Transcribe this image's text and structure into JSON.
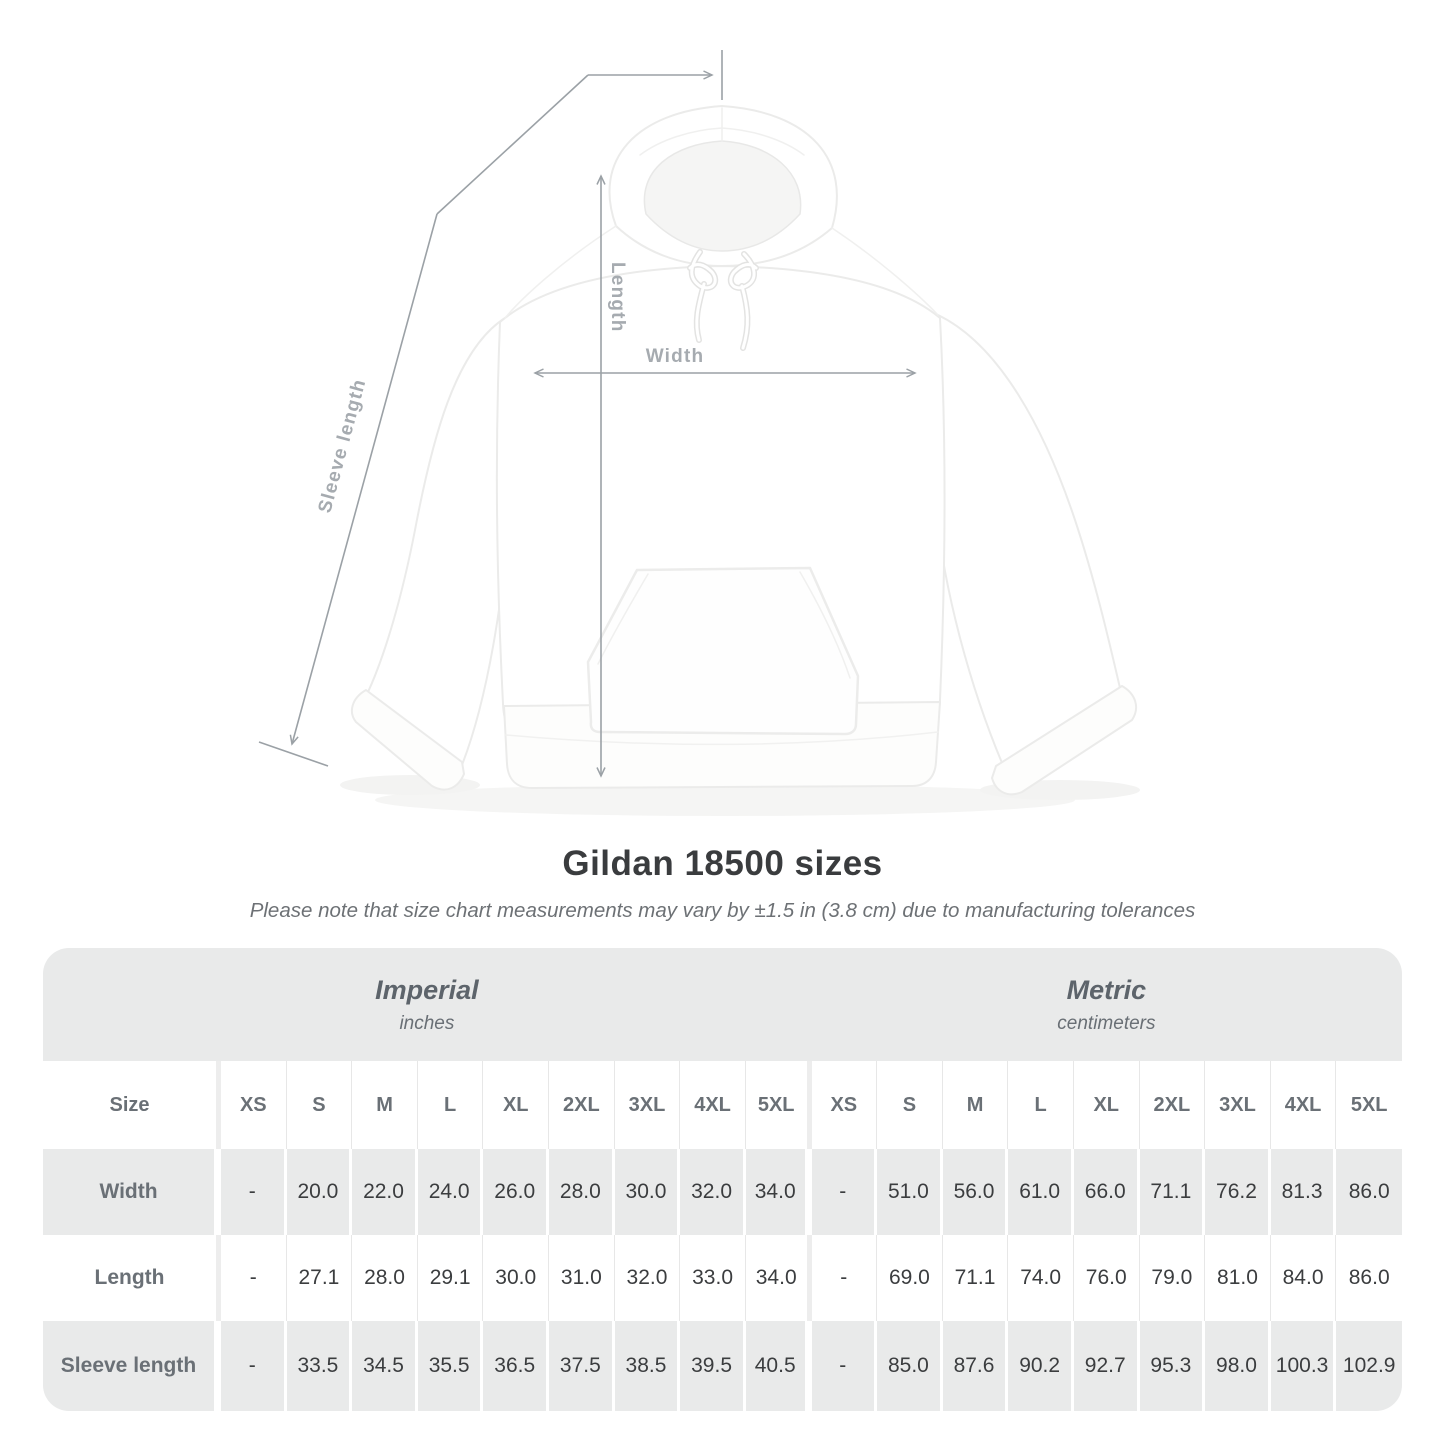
{
  "title": "Gildan 18500 sizes",
  "subtitle": "Please note that size chart measurements may vary by ±1.5 in (3.8 cm) due to manufacturing tolerances",
  "diagram": {
    "labels": {
      "length": "Length",
      "width": "Width",
      "sleeve_length": "Sleeve length"
    },
    "line_color": "#9ba1a6",
    "label_color": "#a6abb0"
  },
  "table": {
    "size_col_header": "Size",
    "unit_groups": [
      {
        "name": "Imperial",
        "unit": "inches"
      },
      {
        "name": "Metric",
        "unit": "centimeters"
      }
    ],
    "sizes": [
      "XS",
      "S",
      "M",
      "L",
      "XL",
      "2XL",
      "3XL",
      "4XL",
      "5XL"
    ],
    "rows": [
      {
        "label": "Width",
        "imperial": [
          "-",
          "20.0",
          "22.0",
          "24.0",
          "26.0",
          "28.0",
          "30.0",
          "32.0",
          "34.0"
        ],
        "metric": [
          "-",
          "51.0",
          "56.0",
          "61.0",
          "66.0",
          "71.1",
          "76.2",
          "81.3",
          "86.0"
        ]
      },
      {
        "label": "Length",
        "imperial": [
          "-",
          "27.1",
          "28.0",
          "29.1",
          "30.0",
          "31.0",
          "32.0",
          "33.0",
          "34.0"
        ],
        "metric": [
          "-",
          "69.0",
          "71.1",
          "74.0",
          "76.0",
          "79.0",
          "81.0",
          "84.0",
          "86.0"
        ]
      },
      {
        "label": "Sleeve length",
        "imperial": [
          "-",
          "33.5",
          "34.5",
          "35.5",
          "36.5",
          "37.5",
          "38.5",
          "39.5",
          "40.5"
        ],
        "metric": [
          "-",
          "85.0",
          "87.6",
          "90.2",
          "92.7",
          "95.3",
          "98.0",
          "100.3",
          "102.9"
        ]
      }
    ]
  },
  "chart_data": {
    "type": "table",
    "title": "Gildan 18500 sizes",
    "note": "Please note that size chart measurements may vary by ±1.5 in (3.8 cm) due to manufacturing tolerances",
    "column_groups": [
      "Imperial (inches)",
      "Metric (centimeters)"
    ],
    "sizes": [
      "XS",
      "S",
      "M",
      "L",
      "XL",
      "2XL",
      "3XL",
      "4XL",
      "5XL"
    ],
    "rows": [
      {
        "measurement": "Width",
        "imperial_in": [
          null,
          20.0,
          22.0,
          24.0,
          26.0,
          28.0,
          30.0,
          32.0,
          34.0
        ],
        "metric_cm": [
          null,
          51.0,
          56.0,
          61.0,
          66.0,
          71.1,
          76.2,
          81.3,
          86.0
        ]
      },
      {
        "measurement": "Length",
        "imperial_in": [
          null,
          27.1,
          28.0,
          29.1,
          30.0,
          31.0,
          32.0,
          33.0,
          34.0
        ],
        "metric_cm": [
          null,
          69.0,
          71.1,
          74.0,
          76.0,
          79.0,
          81.0,
          84.0,
          86.0
        ]
      },
      {
        "measurement": "Sleeve length",
        "imperial_in": [
          null,
          33.5,
          34.5,
          35.5,
          36.5,
          37.5,
          38.5,
          39.5,
          40.5
        ],
        "metric_cm": [
          null,
          85.0,
          87.6,
          90.2,
          92.7,
          95.3,
          98.0,
          100.3,
          102.9
        ]
      }
    ],
    "colors": {
      "band_gray": "#e9eaea",
      "header_text": "#6a7076",
      "value_text": "#3b3d3f",
      "diagram_lines": "#9ba1a6"
    }
  }
}
